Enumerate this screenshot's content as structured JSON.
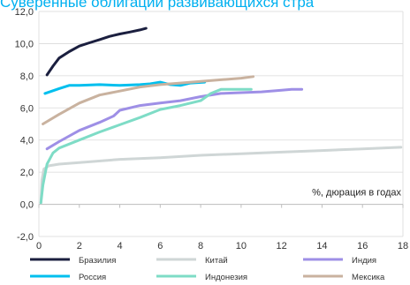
{
  "chart_data": {
    "type": "line",
    "title": "Суверенные облигации развивающихся стра",
    "xlabel": "%, дюрация в годах",
    "ylabel": "",
    "xlim": [
      0,
      18
    ],
    "ylim": [
      -2,
      12
    ],
    "x_ticks": [
      "0",
      "2",
      "4",
      "6",
      "8",
      "10",
      "12",
      "14",
      "16",
      "18"
    ],
    "y_ticks": [
      "-2,0",
      "0,0",
      "2,0",
      "4,0",
      "6,0",
      "8,0",
      "10,0",
      "12,0"
    ],
    "grid": true,
    "legend_position": "bottom",
    "series": [
      {
        "name": "Бразилия",
        "color": "#1b1f3f",
        "points": [
          [
            0.4,
            8.05
          ],
          [
            0.7,
            8.6
          ],
          [
            1.0,
            9.1
          ],
          [
            1.5,
            9.5
          ],
          [
            2.0,
            9.85
          ],
          [
            2.5,
            10.05
          ],
          [
            3.0,
            10.25
          ],
          [
            3.5,
            10.45
          ],
          [
            4.0,
            10.6
          ],
          [
            4.5,
            10.72
          ],
          [
            5.0,
            10.85
          ],
          [
            5.3,
            10.95
          ]
        ]
      },
      {
        "name": "Китай",
        "color": "#cfd6d6",
        "points": [
          [
            0.1,
            0.1
          ],
          [
            0.15,
            1.5
          ],
          [
            0.25,
            2.2
          ],
          [
            0.5,
            2.4
          ],
          [
            1.0,
            2.5
          ],
          [
            2.0,
            2.6
          ],
          [
            4.0,
            2.8
          ],
          [
            6.0,
            2.9
          ],
          [
            8.0,
            3.05
          ],
          [
            10.0,
            3.15
          ],
          [
            12.0,
            3.25
          ],
          [
            14.0,
            3.35
          ],
          [
            16.0,
            3.45
          ],
          [
            17.9,
            3.55
          ]
        ]
      },
      {
        "name": "Индия",
        "color": "#9e8fe6",
        "points": [
          [
            0.4,
            3.45
          ],
          [
            1.0,
            3.9
          ],
          [
            2.0,
            4.6
          ],
          [
            3.0,
            5.1
          ],
          [
            3.7,
            5.5
          ],
          [
            4.0,
            5.85
          ],
          [
            5.0,
            6.15
          ],
          [
            6.0,
            6.3
          ],
          [
            7.0,
            6.45
          ],
          [
            8.0,
            6.7
          ],
          [
            9.0,
            6.9
          ],
          [
            10.0,
            6.95
          ],
          [
            11.0,
            7.0
          ],
          [
            12.0,
            7.1
          ],
          [
            12.5,
            7.15
          ],
          [
            13.0,
            7.15
          ]
        ]
      },
      {
        "name": "Россия",
        "color": "#00bfee",
        "points": [
          [
            0.3,
            6.9
          ],
          [
            1.0,
            7.2
          ],
          [
            1.5,
            7.4
          ],
          [
            2.0,
            7.4
          ],
          [
            3.0,
            7.45
          ],
          [
            4.0,
            7.4
          ],
          [
            5.0,
            7.45
          ],
          [
            5.5,
            7.5
          ],
          [
            6.0,
            7.6
          ],
          [
            6.5,
            7.45
          ],
          [
            7.0,
            7.4
          ],
          [
            7.5,
            7.55
          ],
          [
            8.2,
            7.6
          ]
        ]
      },
      {
        "name": "Индонезия",
        "color": "#7edcc6",
        "points": [
          [
            0.1,
            0.1
          ],
          [
            0.2,
            1.2
          ],
          [
            0.4,
            2.5
          ],
          [
            0.7,
            3.2
          ],
          [
            1.0,
            3.5
          ],
          [
            2.0,
            4.0
          ],
          [
            3.0,
            4.5
          ],
          [
            4.0,
            4.95
          ],
          [
            5.0,
            5.4
          ],
          [
            6.0,
            5.9
          ],
          [
            7.0,
            6.15
          ],
          [
            8.0,
            6.45
          ],
          [
            8.5,
            6.9
          ],
          [
            9.0,
            7.15
          ],
          [
            10.0,
            7.15
          ],
          [
            10.5,
            7.15
          ]
        ]
      },
      {
        "name": "Мексика",
        "color": "#c9b29f",
        "points": [
          [
            0.2,
            5.0
          ],
          [
            1.0,
            5.6
          ],
          [
            2.0,
            6.3
          ],
          [
            3.0,
            6.8
          ],
          [
            4.0,
            7.05
          ],
          [
            5.0,
            7.3
          ],
          [
            6.0,
            7.45
          ],
          [
            7.0,
            7.55
          ],
          [
            8.0,
            7.65
          ],
          [
            9.0,
            7.75
          ],
          [
            10.0,
            7.85
          ],
          [
            10.6,
            7.95
          ]
        ]
      }
    ]
  }
}
